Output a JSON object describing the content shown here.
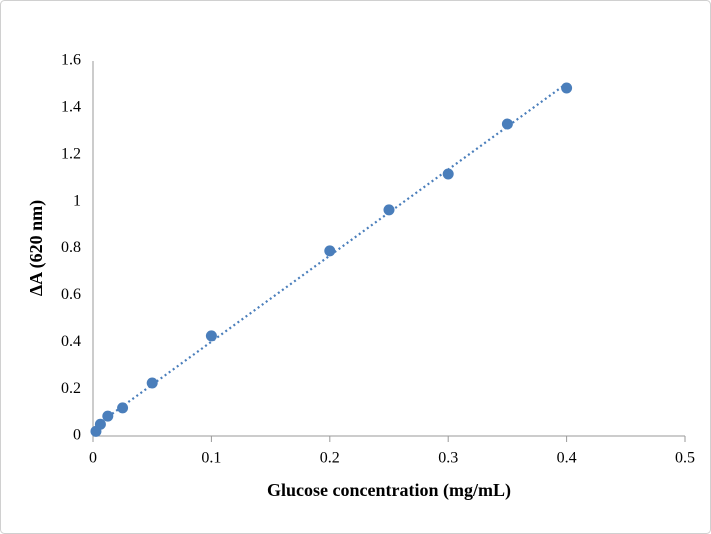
{
  "chart_data": {
    "type": "scatter",
    "x_label": "Glucose concentration (mg/mL)",
    "y_label": "ΔA (620 nm)",
    "x": [
      0.0025,
      0.00625,
      0.0125,
      0.025,
      0.05,
      0.1,
      0.2,
      0.25,
      0.3,
      0.35,
      0.4
    ],
    "values": [
      0.02,
      0.05,
      0.085,
      0.12,
      0.226,
      0.427,
      0.79,
      0.965,
      1.118,
      1.331,
      1.485
    ],
    "color": "#4a7ebb",
    "trendline": "linear",
    "xlim": [
      0,
      0.5
    ],
    "xticks": [
      0,
      0.1,
      0.2,
      0.3,
      0.4,
      0.5
    ],
    "ylim": [
      0,
      1.6
    ],
    "yticks": [
      0,
      0.2,
      0.4,
      0.6,
      0.8,
      1,
      1.2,
      1.4,
      1.6
    ]
  }
}
